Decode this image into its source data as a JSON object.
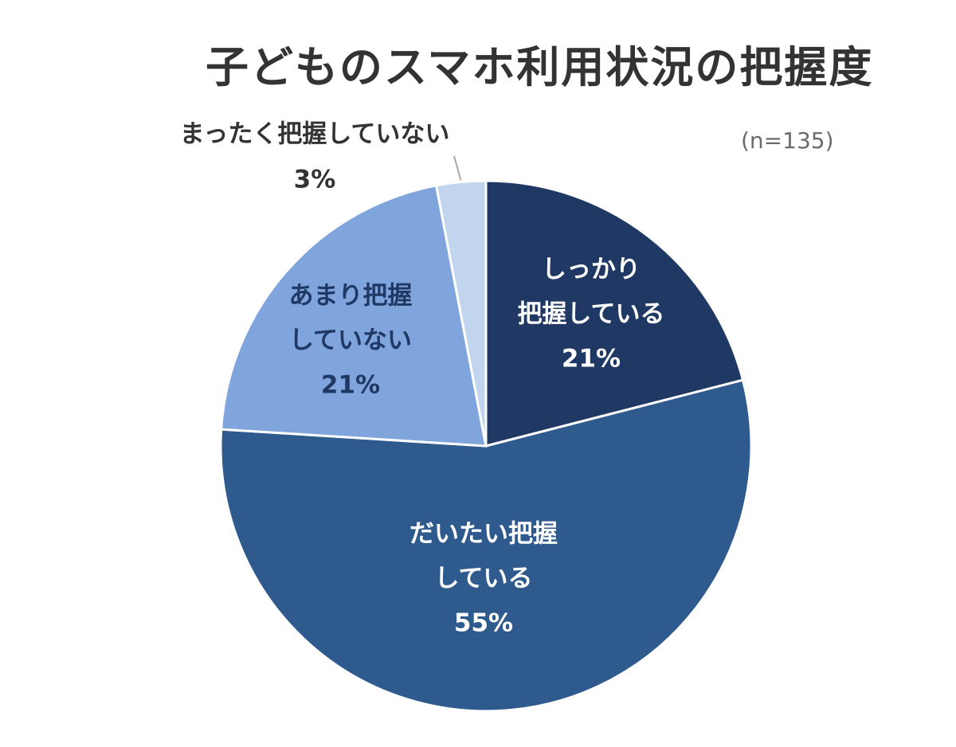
{
  "chart_data": {
    "type": "pie",
    "title": "子どものスマホ利用状況の把握度",
    "note": "(n=135)",
    "slices": [
      {
        "label": "しっかり把握している",
        "label_lines": [
          "しっかり",
          "把握している"
        ],
        "value": 21,
        "value_label": "21%",
        "color": "#1f3864",
        "text_color": "#ffffff"
      },
      {
        "label": "だいたい把握している",
        "label_lines": [
          "だいたい把握",
          "している"
        ],
        "value": 55,
        "value_label": "55%",
        "color": "#2f5a8e",
        "text_color": "#ffffff"
      },
      {
        "label": "あまり把握していない",
        "label_lines": [
          "あまり把握",
          "していない"
        ],
        "value": 21,
        "value_label": "21%",
        "color": "#7fa5dc",
        "text_color": "#1f3864"
      },
      {
        "label": "まったく把握していない",
        "label_lines": [
          "まったく把握していない"
        ],
        "value": 3,
        "value_label": "3%",
        "color": "#c1d5ee",
        "text_color": "#333333"
      }
    ],
    "legend": "none"
  }
}
